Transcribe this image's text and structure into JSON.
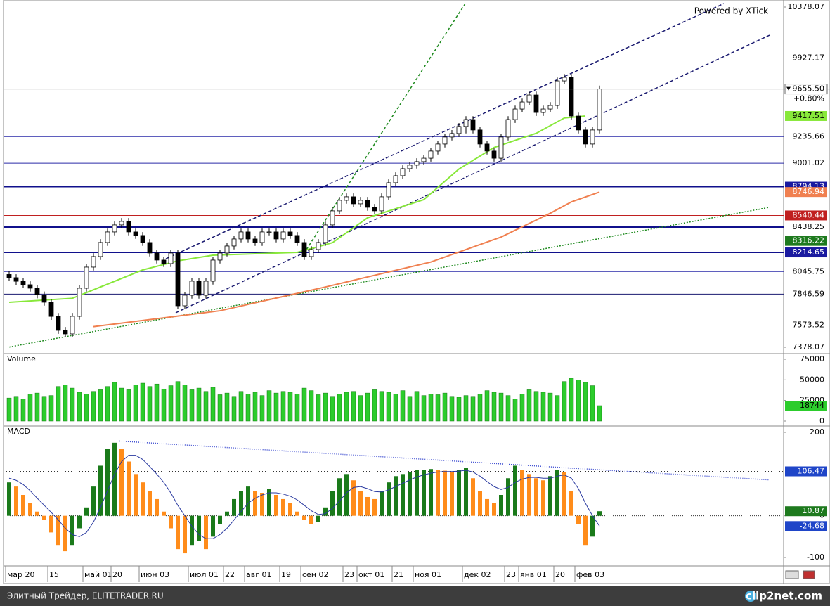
{
  "chart_data": [
    {
      "type": "candlestick",
      "watermark": "Powered by XTick",
      "open": [
        8020,
        7992,
        7960,
        7930,
        7899,
        7840,
        7775,
        7650,
        7527,
        7496,
        7651,
        7899,
        8085,
        8178,
        8302,
        8395,
        8457,
        8488,
        8395,
        8364,
        8302,
        8209,
        8147,
        8116,
        8209,
        7744,
        7837,
        7961,
        7837,
        7961,
        8147,
        8209,
        8271,
        8333,
        8395,
        8333,
        8302,
        8395,
        8395,
        8333,
        8395,
        8364,
        8302,
        8178,
        8240,
        8302,
        8457,
        8581,
        8674,
        8705,
        8643,
        8674,
        8612,
        8581,
        8705,
        8829,
        8891,
        8953,
        8984,
        9015,
        9045,
        9108,
        9170,
        9232,
        9263,
        9325,
        9386,
        9294,
        9170,
        9108,
        9045,
        9232,
        9386,
        9479,
        9541,
        9603,
        9448,
        9479,
        9510,
        9727,
        9758,
        9417,
        9294,
        9170,
        9294
      ],
      "high": [
        8050,
        8022,
        7990,
        7960,
        7929,
        7870,
        7805,
        7680,
        7557,
        7681,
        7929,
        8115,
        8208,
        8332,
        8425,
        8487,
        8518,
        8518,
        8425,
        8394,
        8332,
        8239,
        8177,
        8239,
        8239,
        7867,
        7991,
        7991,
        7991,
        8177,
        8239,
        8301,
        8363,
        8425,
        8425,
        8363,
        8425,
        8425,
        8425,
        8425,
        8425,
        8394,
        8332,
        8270,
        8332,
        8487,
        8611,
        8704,
        8735,
        8735,
        8704,
        8704,
        8642,
        8735,
        8859,
        8921,
        8983,
        9014,
        9045,
        9075,
        9138,
        9200,
        9262,
        9293,
        9355,
        9416,
        9416,
        9324,
        9200,
        9138,
        9262,
        9416,
        9509,
        9571,
        9633,
        9633,
        9509,
        9540,
        9757,
        9788,
        9788,
        9447,
        9324,
        9324,
        9685.5
      ],
      "low": [
        7962,
        7930,
        7900,
        7869,
        7810,
        7745,
        7620,
        7497,
        7466,
        7466,
        7621,
        7869,
        8055,
        8148,
        8272,
        8365,
        8427,
        8365,
        8334,
        8272,
        8179,
        8117,
        8086,
        8086,
        7714,
        7714,
        7807,
        7807,
        7807,
        7931,
        8117,
        8179,
        8241,
        8303,
        8303,
        8272,
        8272,
        8365,
        8303,
        8303,
        8334,
        8272,
        8148,
        8148,
        8210,
        8272,
        8427,
        8551,
        8644,
        8613,
        8613,
        8582,
        8551,
        8551,
        8675,
        8799,
        8861,
        8923,
        8954,
        8985,
        9015,
        9078,
        9140,
        9202,
        9233,
        9264,
        9264,
        9140,
        9078,
        9015,
        9015,
        9202,
        9356,
        9449,
        9511,
        9418,
        9418,
        9449,
        9480,
        9697,
        9387,
        9264,
        9140,
        9140,
        9264
      ],
      "close": [
        7992,
        7960,
        7930,
        7899,
        7840,
        7775,
        7650,
        7527,
        7496,
        7651,
        7899,
        8085,
        8178,
        8302,
        8395,
        8457,
        8488,
        8395,
        8364,
        8302,
        8209,
        8147,
        8116,
        8209,
        7744,
        7837,
        7961,
        7837,
        7961,
        8147,
        8209,
        8271,
        8333,
        8395,
        8333,
        8302,
        8395,
        8395,
        8333,
        8395,
        8364,
        8302,
        8178,
        8240,
        8302,
        8457,
        8581,
        8674,
        8705,
        8643,
        8674,
        8612,
        8581,
        8705,
        8829,
        8891,
        8953,
        8984,
        9015,
        9045,
        9108,
        9170,
        9232,
        9263,
        9325,
        9386,
        9294,
        9170,
        9108,
        9045,
        9232,
        9386,
        9479,
        9541,
        9603,
        9448,
        9479,
        9510,
        9727,
        9758,
        9417,
        9294,
        9170,
        9294,
        9655.5
      ],
      "up_color": "#ffffff",
      "down_color": "#000000",
      "ylim": [
        7378.07,
        10378.07
      ],
      "yticks": [
        7378.07,
        10378.07
      ],
      "last": {
        "value": 9655.5,
        "label": "9655.50"
      },
      "change": {
        "value": 0.8,
        "label": "+0.80%"
      },
      "last_color": "#808080",
      "levels": [
        {
          "value": 9927.17
        },
        {
          "value": 9235.66,
          "line_color": "#2a2aa8"
        },
        {
          "value": 9001.02,
          "line_color": "#2a2aa8"
        },
        {
          "value": 8794.13,
          "line_color": "#10108c",
          "width": 2,
          "box_color": "#1a1aa0",
          "text_color": "#ffffff"
        },
        {
          "value": 8540.44,
          "line_color": "#c02020",
          "box_color": "#c02020",
          "text_color": "#ffffff"
        },
        {
          "value": 8438.25,
          "line_color": "#10108c",
          "width": 2
        },
        {
          "value": 8316.22,
          "box_color": "#1e7a1e",
          "text_color": "#ffffff"
        },
        {
          "value": 8214.65,
          "line_color": "#10108c",
          "width": 2,
          "box_color": "#1a1aa0",
          "text_color": "#ffffff"
        },
        {
          "value": 8045.75,
          "line_color": "#2a2aa8"
        },
        {
          "value": 7846.59,
          "line_color": "#1a1a70"
        },
        {
          "value": 7573.52,
          "line_color": "#2a2aa8"
        }
      ],
      "lines": [
        {
          "x": [
            0,
            9,
            19,
            24,
            29,
            41,
            46,
            51,
            59,
            64,
            69,
            75,
            79,
            82
          ],
          "values": [
            7775,
            7810,
            8060,
            8140,
            8190,
            8215,
            8300,
            8520,
            8680,
            8950,
            9140,
            9265,
            9400,
            9417.51
          ],
          "color": "#88e83a",
          "box_color": "#88e83a",
          "text_color": "#000000"
        },
        {
          "x": [
            12,
            30,
            45,
            60,
            70,
            77,
            80,
            84
          ],
          "values": [
            7560,
            7700,
            7910,
            8130,
            8350,
            8560,
            8660,
            8746.94
          ],
          "color": "#f08050",
          "box_color": "#f08050",
          "text_color": "#ffffff"
        }
      ],
      "trendlines": [
        {
          "x": [
            22.3,
            101.7
          ],
          "y": [
            8159,
            10409
          ],
          "color": "#1a1a70",
          "dash": "5,3"
        },
        {
          "x": [
            23.7,
            108.2
          ],
          "y": [
            7682,
            10130
          ],
          "color": "#1a1a70",
          "dash": "5,3"
        },
        {
          "x": [
            42.3,
            64.9
          ],
          "y": [
            8240,
            10409
          ],
          "color": "#1e8a1e",
          "dash": "4,3"
        },
        {
          "x": [
            0,
            108.2
          ],
          "y": [
            7380,
            8612
          ],
          "color": "#1e8a1e",
          "dash": "2,2"
        }
      ]
    },
    {
      "type": "bar",
      "title": "Volume",
      "values": [
        28000,
        30000,
        27000,
        33000,
        34000,
        30000,
        31000,
        42000,
        44000,
        40000,
        35000,
        33000,
        36000,
        38000,
        42000,
        47000,
        40000,
        38000,
        44000,
        46000,
        42000,
        45000,
        39000,
        43000,
        48000,
        44000,
        38000,
        40000,
        36000,
        41000,
        32000,
        34000,
        30000,
        36000,
        33000,
        35000,
        31000,
        37000,
        34000,
        36000,
        35000,
        33000,
        40000,
        37000,
        32000,
        34000,
        30000,
        33000,
        35000,
        36000,
        31000,
        34000,
        38000,
        36000,
        35000,
        33000,
        37000,
        30000,
        36000,
        31000,
        33000,
        32000,
        34000,
        30000,
        29000,
        31000,
        30000,
        33000,
        37000,
        35000,
        34000,
        31000,
        27000,
        33000,
        38000,
        36000,
        35000,
        34000,
        31000,
        48000,
        52000,
        50000,
        47000,
        43000,
        18744
      ],
      "color": "#2ccc2c",
      "ylim": [
        0,
        75000
      ],
      "yticks": [
        0,
        25000,
        50000,
        75000
      ],
      "box_color": "#2ccc2c",
      "text_color": "#000000"
    },
    {
      "type": "macd",
      "title": "MACD",
      "categories": [
        "мар 20",
        null,
        null,
        null,
        null,
        null,
        "15",
        null,
        null,
        null,
        null,
        "май 01",
        null,
        null,
        null,
        "20",
        null,
        null,
        null,
        "июн 03",
        null,
        null,
        null,
        null,
        null,
        null,
        "июл 01",
        null,
        null,
        null,
        null,
        "22",
        null,
        null,
        "авг 01",
        null,
        null,
        null,
        null,
        "19",
        null,
        null,
        "сен 02",
        null,
        null,
        null,
        null,
        null,
        "23",
        null,
        "окт 01",
        null,
        null,
        null,
        null,
        "21",
        null,
        null,
        "ноя 01",
        null,
        null,
        null,
        null,
        null,
        null,
        "дек 02",
        null,
        null,
        null,
        null,
        null,
        "23",
        null,
        "янв 01",
        null,
        null,
        null,
        null,
        "20",
        null,
        null,
        "фев 03",
        null,
        null,
        null
      ],
      "hist": [
        80,
        70,
        50,
        30,
        10,
        -10,
        -40,
        -70,
        -85,
        -70,
        -30,
        20,
        70,
        120,
        160,
        175,
        160,
        130,
        100,
        80,
        60,
        40,
        10,
        -30,
        -80,
        -90,
        -70,
        -60,
        -80,
        -50,
        -20,
        10,
        40,
        60,
        70,
        60,
        55,
        65,
        50,
        40,
        30,
        10,
        -10,
        -20,
        -15,
        20,
        60,
        90,
        100,
        85,
        60,
        45,
        40,
        60,
        80,
        95,
        100,
        105,
        110,
        110,
        112,
        110,
        108,
        105,
        110,
        115,
        90,
        60,
        40,
        30,
        50,
        90,
        120,
        110,
        100,
        90,
        85,
        95,
        110,
        105,
        60,
        -20,
        -70,
        -50,
        10.87
      ],
      "signal": [
        90,
        85,
        75,
        60,
        42,
        25,
        8,
        -10,
        -30,
        -45,
        -50,
        -40,
        -15,
        20,
        60,
        100,
        130,
        145,
        145,
        135,
        118,
        100,
        80,
        55,
        25,
        0,
        -25,
        -45,
        -55,
        -55,
        -45,
        -30,
        -10,
        10,
        30,
        42,
        50,
        55,
        55,
        52,
        47,
        38,
        25,
        12,
        3,
        5,
        18,
        35,
        55,
        68,
        70,
        65,
        58,
        57,
        62,
        70,
        78,
        86,
        93,
        98,
        102,
        105,
        106,
        106,
        107,
        109,
        105,
        95,
        82,
        70,
        63,
        68,
        80,
        88,
        92,
        92,
        90,
        90,
        95,
        98,
        90,
        65,
        30,
        0,
        -24.68
      ],
      "up_color": "#1a7a1a",
      "down_color": "#ff8c1a",
      "signal_color": "#2a3aa0",
      "hist_box_color": "#1e7a1e",
      "signal_box_color": "#1f45c8",
      "ylim": [
        -100,
        200
      ],
      "yticks": [
        -100,
        0,
        200
      ],
      "levels": [
        {
          "value": 106.47,
          "box_color": "#1f45c8",
          "text_color": "#ffffff"
        }
      ],
      "trendlines": [
        {
          "x": [
            15.7,
            108.2
          ],
          "y": [
            179,
            86
          ],
          "color": "#3a4ad0",
          "dash": "1,2"
        }
      ]
    }
  ],
  "footer": {
    "left": "Элитный Трейдер, ELITETRADER.RU",
    "right": "clip2net.com"
  }
}
